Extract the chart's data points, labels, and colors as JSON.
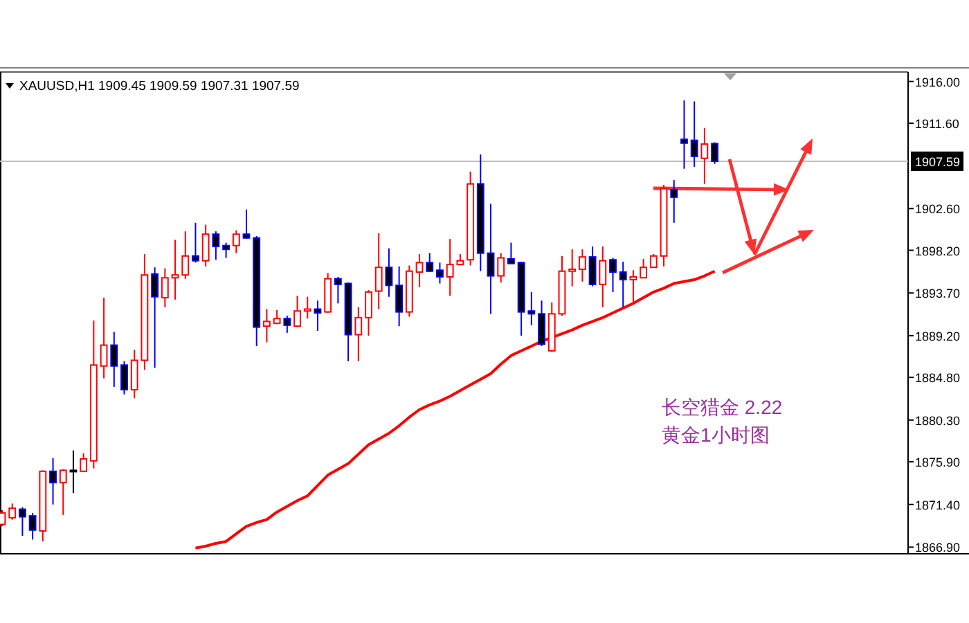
{
  "chart_data": {
    "type": "candlestick",
    "title": "XAUUSD,H1  1909.45 1909.59 1907.31 1907.59",
    "categories": [
      null,
      null,
      null,
      null,
      null,
      null,
      null,
      null,
      null,
      null,
      null,
      null,
      null,
      null,
      null,
      null,
      null,
      null,
      null,
      null,
      null,
      null,
      null,
      null,
      null,
      null,
      null,
      null,
      null,
      null,
      null,
      null,
      null,
      null,
      null,
      null,
      null,
      null,
      null,
      null,
      null,
      null,
      null,
      null,
      null,
      null,
      null,
      null,
      null,
      null,
      null,
      null,
      null,
      null,
      null,
      null,
      null,
      null,
      null,
      null,
      null,
      null,
      null,
      null,
      null,
      null,
      null,
      null,
      null,
      null,
      null
    ],
    "ohlc": [
      [
        1869.3,
        1870.8,
        1869.1,
        1870.5
      ],
      [
        1870.0,
        1871.5,
        1869.8,
        1871.0
      ],
      [
        1870.9,
        1871.1,
        1868.1,
        1870.1
      ],
      [
        1870.2,
        1870.5,
        1867.7,
        1868.7
      ],
      [
        1868.6,
        1875.0,
        1867.5,
        1874.9
      ],
      [
        1874.9,
        1876.3,
        1871.4,
        1873.7
      ],
      [
        1873.7,
        1875.1,
        1870.3,
        1875.0
      ],
      [
        1875.0,
        1877.1,
        1872.6,
        1874.9
      ],
      [
        1874.9,
        1876.8,
        1874.8,
        1876.2
      ],
      [
        1876.0,
        1890.8,
        1875.2,
        1886.1
      ],
      [
        1886.0,
        1893.2,
        1884.7,
        1888.2
      ],
      [
        1888.2,
        1889.6,
        1883.8,
        1886.0
      ],
      [
        1886.1,
        1886.5,
        1883.0,
        1883.5
      ],
      [
        1883.5,
        1887.7,
        1882.6,
        1886.6
      ],
      [
        1886.6,
        1897.8,
        1885.6,
        1895.6
      ],
      [
        1895.7,
        1896.4,
        1885.8,
        1893.3
      ],
      [
        1893.2,
        1896.3,
        1892.2,
        1895.3
      ],
      [
        1895.3,
        1899.3,
        1893.0,
        1895.6
      ],
      [
        1895.6,
        1900.2,
        1895.2,
        1897.6
      ],
      [
        1897.6,
        1901.1,
        1896.9,
        1897.1
      ],
      [
        1897.1,
        1900.9,
        1896.5,
        1899.9
      ],
      [
        1899.9,
        1900.2,
        1897.2,
        1898.6
      ],
      [
        1898.7,
        1899.0,
        1897.4,
        1898.3
      ],
      [
        1898.7,
        1900.3,
        1897.9,
        1899.9
      ],
      [
        1899.9,
        1902.5,
        1899.4,
        1899.5
      ],
      [
        1899.5,
        1899.7,
        1888.1,
        1890.1
      ],
      [
        1890.2,
        1892.0,
        1888.5,
        1890.7
      ],
      [
        1890.5,
        1891.9,
        1890.4,
        1891.0
      ],
      [
        1891.0,
        1891.3,
        1889.5,
        1890.3
      ],
      [
        1890.2,
        1893.4,
        1890.1,
        1891.8
      ],
      [
        1891.8,
        1893.3,
        1891.0,
        1892.0
      ],
      [
        1892.0,
        1892.9,
        1889.7,
        1891.6
      ],
      [
        1891.7,
        1895.8,
        1891.6,
        1895.2
      ],
      [
        1895.2,
        1895.4,
        1892.6,
        1894.6
      ],
      [
        1894.7,
        1894.8,
        1886.5,
        1889.3
      ],
      [
        1889.3,
        1892.2,
        1886.5,
        1891.1
      ],
      [
        1891.1,
        1894.0,
        1889.2,
        1893.8
      ],
      [
        1893.9,
        1900.0,
        1892.0,
        1896.4
      ],
      [
        1896.4,
        1898.4,
        1893.3,
        1894.5
      ],
      [
        1894.5,
        1896.5,
        1890.2,
        1891.7
      ],
      [
        1891.7,
        1896.6,
        1891.2,
        1896.0
      ],
      [
        1895.9,
        1897.8,
        1894.3,
        1896.9
      ],
      [
        1896.9,
        1897.9,
        1895.9,
        1896.0
      ],
      [
        1896.1,
        1896.9,
        1894.7,
        1895.4
      ],
      [
        1895.4,
        1899.4,
        1893.4,
        1896.7
      ],
      [
        1896.7,
        1897.8,
        1896.6,
        1897.1
      ],
      [
        1897.2,
        1906.5,
        1896.6,
        1905.2
      ],
      [
        1905.2,
        1908.3,
        1896.0,
        1897.9
      ],
      [
        1897.9,
        1903.1,
        1891.5,
        1895.5
      ],
      [
        1895.5,
        1897.9,
        1894.8,
        1897.4
      ],
      [
        1897.3,
        1899.0,
        1896.8,
        1896.8
      ],
      [
        1896.9,
        1897.0,
        1889.2,
        1891.7
      ],
      [
        1891.8,
        1893.8,
        1890.3,
        1891.5
      ],
      [
        1891.5,
        1892.9,
        1888.1,
        1888.3
      ],
      [
        1887.6,
        1892.7,
        1887.5,
        1891.5
      ],
      [
        1891.5,
        1897.6,
        1891.3,
        1896.0
      ],
      [
        1896.0,
        1898.3,
        1894.4,
        1896.2
      ],
      [
        1896.2,
        1898.3,
        1894.9,
        1897.5
      ],
      [
        1897.5,
        1898.6,
        1894.4,
        1894.6
      ],
      [
        1894.6,
        1898.6,
        1892.2,
        1897.1
      ],
      [
        1897.2,
        1897.4,
        1893.8,
        1895.9
      ],
      [
        1895.9,
        1897.0,
        1892.2,
        1895.1
      ],
      [
        1895.1,
        1896.1,
        1892.7,
        1895.4
      ],
      [
        1895.3,
        1897.3,
        1895.3,
        1896.4
      ],
      [
        1896.4,
        1897.8,
        1896.4,
        1897.6
      ],
      [
        1897.6,
        1905.1,
        1896.5,
        1904.7
      ],
      [
        1904.6,
        1905.6,
        1901.1,
        1903.8
      ],
      [
        1909.9,
        1914.0,
        1906.8,
        1909.5
      ],
      [
        1909.8,
        1913.9,
        1907.0,
        1908.1
      ],
      [
        1907.9,
        1911.1,
        1905.2,
        1909.4
      ],
      [
        1909.45,
        1909.59,
        1907.31,
        1907.59
      ]
    ],
    "colors": [
      "#ff0000",
      "#ff0000",
      "#0000ff",
      "#0000ff",
      "#ff0000",
      "#0000ff",
      "#ff0000",
      "#000000",
      "#ff0000",
      "#ff0000",
      "#ff0000",
      "#0000ff",
      "#0000ff",
      "#ff0000",
      "#ff0000",
      "#0000ff",
      "#ff0000",
      "#ff0000",
      "#ff0000",
      "#0000ff",
      "#ff0000",
      "#0000ff",
      "#0000ff",
      "#ff0000",
      "#0000ff",
      "#0000ff",
      "#ff0000",
      "#ff0000",
      "#0000ff",
      "#ff0000",
      "#ff0000",
      "#0000ff",
      "#ff0000",
      "#0000ff",
      "#0000ff",
      "#ff0000",
      "#ff0000",
      "#ff0000",
      "#0000ff",
      "#0000ff",
      "#ff0000",
      "#ff0000",
      "#0000ff",
      "#0000ff",
      "#ff0000",
      "#ff0000",
      "#ff0000",
      "#0000ff",
      "#0000ff",
      "#ff0000",
      "#0000ff",
      "#0000ff",
      "#0000ff",
      "#0000ff",
      "#ff0000",
      "#ff0000",
      "#ff0000",
      "#ff0000",
      "#0000ff",
      "#ff0000",
      "#0000ff",
      "#0000ff",
      "#ff0000",
      "#ff0000",
      "#ff0000",
      "#ff0000",
      "#0000ff",
      "#0000ff",
      "#0000ff",
      "#ff0000",
      "#0000ff"
    ],
    "series": [
      {
        "type": "line",
        "color": "#ff0000",
        "values": [
          null,
          null,
          null,
          null,
          null,
          null,
          null,
          null,
          null,
          null,
          null,
          null,
          null,
          null,
          null,
          null,
          null,
          null,
          null,
          1866.8,
          1867.0,
          1867.3,
          1867.5,
          1868.3,
          1869.1,
          1869.5,
          1869.8,
          1870.6,
          1871.2,
          1871.8,
          1872.3,
          1873.4,
          1874.5,
          1875.1,
          1875.7,
          1876.7,
          1877.7,
          1878.3,
          1878.9,
          1879.7,
          1880.6,
          1881.4,
          1881.9,
          1882.3,
          1882.8,
          1883.4,
          1884.0,
          1884.6,
          1885.2,
          1886.2,
          1887.1,
          1887.6,
          1888.1,
          1888.6,
          1889.0,
          1889.4,
          1889.8,
          1890.3,
          1890.7,
          1891.1,
          1891.6,
          1892.1,
          1892.6,
          1893.2,
          1893.8,
          1894.2,
          1894.7,
          1894.9,
          1895.1,
          1895.5,
          1896.0
        ]
      }
    ],
    "ylim": [
      1866.2,
      1917.0
    ],
    "yticks": [
      {
        "value": 1916.0,
        "label": "1916.00"
      },
      {
        "value": 1911.6,
        "label": "1911.60"
      },
      {
        "value": 1902.6,
        "label": "1902.60"
      },
      {
        "value": 1898.2,
        "label": "1898.20"
      },
      {
        "value": 1893.7,
        "label": "1893.70"
      },
      {
        "value": 1889.2,
        "label": "1889.20"
      },
      {
        "value": 1884.8,
        "label": "1884.80"
      },
      {
        "value": 1880.3,
        "label": "1880.30"
      },
      {
        "value": 1875.9,
        "label": "1875.90"
      },
      {
        "value": 1871.4,
        "label": "1871.40"
      },
      {
        "value": 1866.9,
        "label": "1866.90"
      }
    ],
    "ref_lines": [
      {
        "axis": "y",
        "value": 1907.59,
        "label": "1907.59",
        "color": "#c0c0c0"
      }
    ],
    "annotations": [
      "长空猎金  2.22",
      "黄金1小时图"
    ],
    "tick_labels": "y",
    "grid": false
  }
}
